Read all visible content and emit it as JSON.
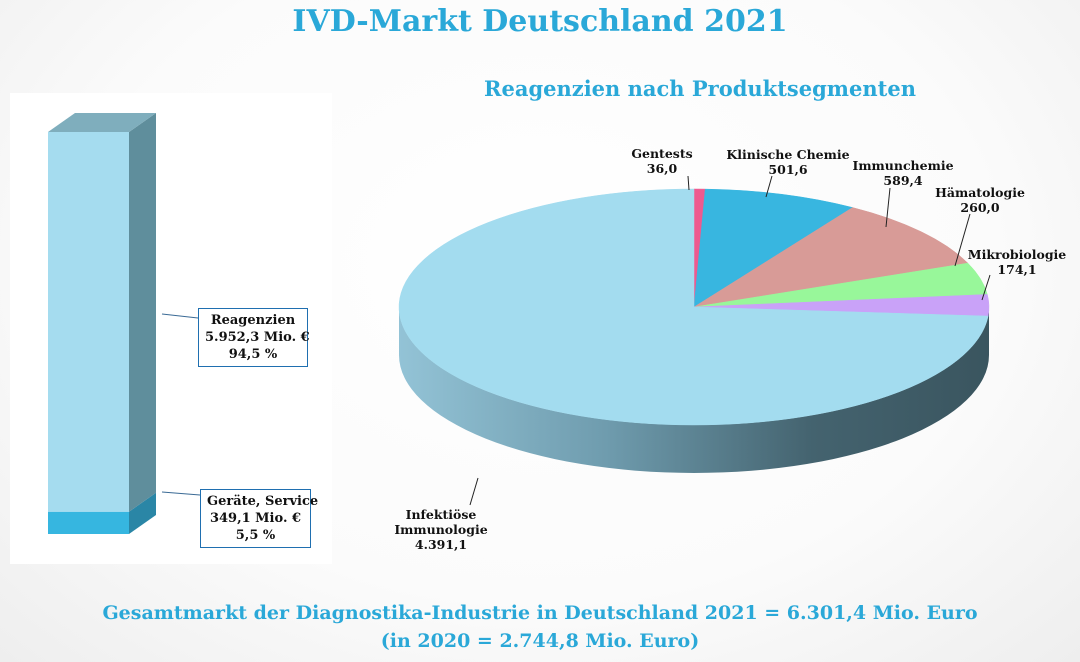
{
  "title": "IVD-Markt Deutschland 2021",
  "pie_title": "Reagenzien nach Produktsegmenten",
  "footer": {
    "total": "Gesamtmarkt der Diagnostika-Industrie in Deutschland 2021 = 6.301,4 Mio. Euro",
    "previous": "(in 2020 = 2.744,8 Mio. Euro)"
  },
  "bar": {
    "segments": [
      {
        "name": "Reagenzien",
        "value": 5952.3,
        "lines": [
          "Reagenzien",
          "5.952,3 Mio. €",
          "94,5 %"
        ],
        "color": "#a5dcef",
        "side": "#5f8e9c",
        "top": "#7faebd"
      },
      {
        "name": "Geräte, Service",
        "value": 349.1,
        "lines": [
          "Geräte, Service",
          "349,1 Mio. €",
          "5,5 %"
        ],
        "color": "#36b6e0",
        "side": "#2a86a6",
        "top": "#2a86a6"
      }
    ]
  },
  "chart_data": [
    {
      "type": "bar",
      "title": "",
      "categories": [
        "Geräte, Service",
        "Reagenzien"
      ],
      "values": [
        349.1,
        5952.3
      ],
      "percent": [
        5.5,
        94.5
      ],
      "unit": "Mio. €",
      "stacked": true
    },
    {
      "type": "pie",
      "title": "Reagenzien nach Produktsegmenten",
      "labels": [
        "Gentests",
        "Klinische Chemie",
        "Immunchemie",
        "Hämatologie",
        "Mikrobiologie",
        "Infektiöse Immunologie"
      ],
      "values": [
        36.0,
        501.6,
        589.4,
        260.0,
        174.1,
        4391.1
      ],
      "value_labels": [
        "36,0",
        "501,6",
        "589,4",
        "260,0",
        "174,1",
        "4.391,1"
      ],
      "colors": [
        "#ee5a8f",
        "#38b6e0",
        "#d89b97",
        "#98f79a",
        "#c9a2f8",
        "#a3dcef"
      ]
    }
  ]
}
